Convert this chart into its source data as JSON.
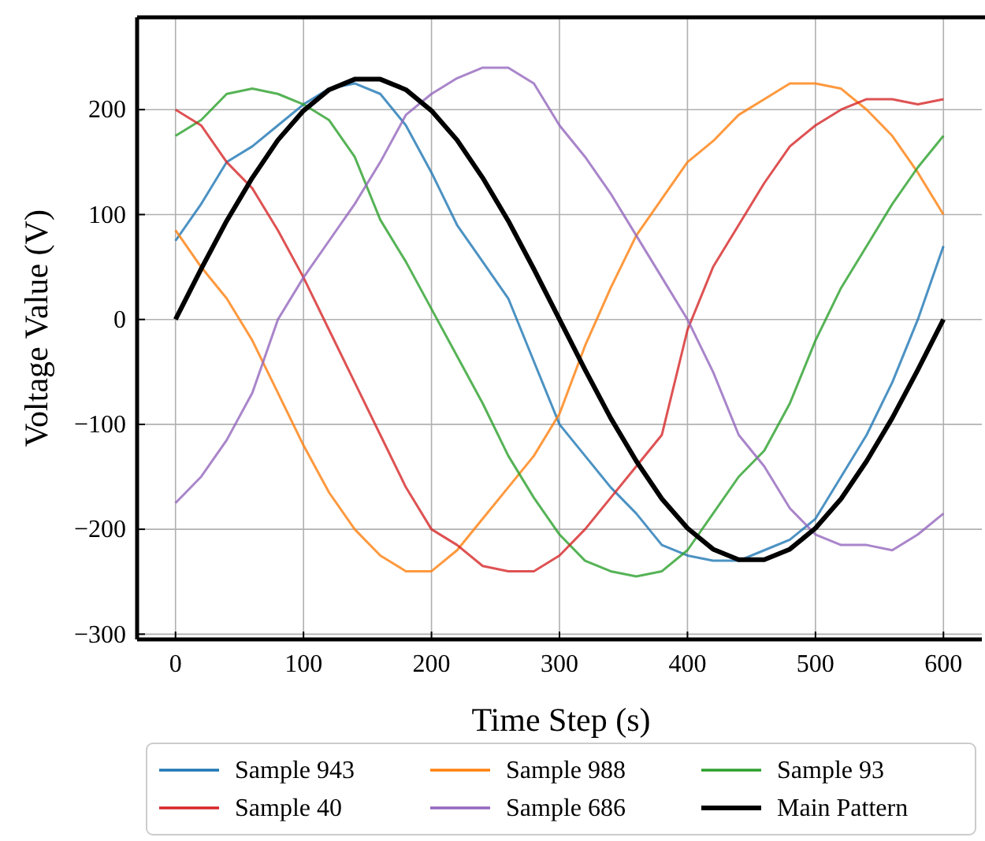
{
  "chart_data": {
    "type": "line",
    "xlabel": "Time Step (s)",
    "ylabel": "Voltage Value (V)",
    "x": [
      0,
      20,
      40,
      60,
      80,
      100,
      120,
      140,
      160,
      180,
      200,
      220,
      240,
      260,
      280,
      300,
      320,
      340,
      360,
      380,
      400,
      420,
      440,
      460,
      480,
      500,
      520,
      540,
      560,
      580,
      600
    ],
    "series": [
      {
        "name": "Sample 943",
        "color": "#1f77b4",
        "values": [
          75,
          110,
          150,
          165,
          185,
          205,
          220,
          225,
          215,
          185,
          140,
          90,
          55,
          20,
          -40,
          -100,
          -130,
          -160,
          -185,
          -215,
          -225,
          -230,
          -230,
          -220,
          -210,
          -190,
          -150,
          -110,
          -60,
          0,
          70
        ]
      },
      {
        "name": "Sample 988",
        "color": "#ff7f0e",
        "values": [
          85,
          50,
          20,
          -20,
          -70,
          -120,
          -165,
          -200,
          -225,
          -240,
          -240,
          -220,
          -190,
          -160,
          -130,
          -90,
          -25,
          30,
          80,
          115,
          150,
          170,
          195,
          210,
          225,
          225,
          220,
          200,
          175,
          140,
          100
        ]
      },
      {
        "name": "Sample 93",
        "color": "#2ca02c",
        "values": [
          175,
          190,
          215,
          220,
          215,
          205,
          190,
          155,
          95,
          55,
          10,
          -35,
          -80,
          -130,
          -170,
          -205,
          -230,
          -240,
          -245,
          -240,
          -220,
          -185,
          -150,
          -125,
          -80,
          -20,
          30,
          70,
          110,
          145,
          175
        ]
      },
      {
        "name": "Sample 40",
        "color": "#d62728",
        "values": [
          200,
          185,
          150,
          125,
          85,
          40,
          -10,
          -60,
          -110,
          -160,
          -200,
          -215,
          -235,
          -240,
          -240,
          -225,
          -200,
          -170,
          -140,
          -110,
          -10,
          50,
          90,
          130,
          165,
          185,
          200,
          210,
          210,
          205,
          210
        ]
      },
      {
        "name": "Sample 686",
        "color": "#9467bd",
        "values": [
          -175,
          -150,
          -115,
          -70,
          0,
          40,
          75,
          110,
          150,
          195,
          215,
          230,
          240,
          240,
          225,
          185,
          155,
          120,
          80,
          40,
          0,
          -50,
          -110,
          -140,
          -180,
          -205,
          -215,
          -215,
          -220,
          -205,
          -185
        ]
      },
      {
        "name": "Main Pattern",
        "color": "#000000",
        "values": [
          0,
          48,
          94,
          135,
          171,
          199,
          219,
          229,
          229,
          219,
          199,
          171,
          135,
          94,
          48,
          0,
          -48,
          -94,
          -135,
          -171,
          -199,
          -219,
          -229,
          -229,
          -219,
          -199,
          -171,
          -135,
          -94,
          -48,
          0
        ]
      }
    ],
    "xlim": [
      -30,
      630
    ],
    "ylim": [
      -305,
      288
    ],
    "xticks": [
      0,
      100,
      200,
      300,
      400,
      500,
      600
    ],
    "yticks": [
      -300,
      -200,
      -100,
      0,
      100,
      200
    ],
    "grid": true,
    "legend": "bottom"
  }
}
